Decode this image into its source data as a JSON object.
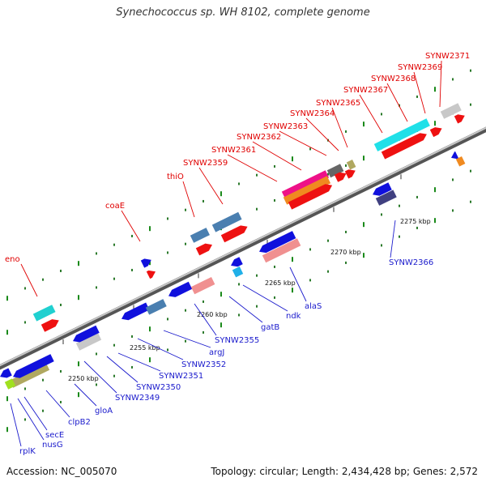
{
  "title": "Synechococcus sp. WH 8102, complete genome",
  "footer": {
    "accession": "Accession: NC_005070",
    "topology": "Topology: circular; Length: 2,434,428 bp; Genes: 2,572"
  },
  "colors": {
    "forward_label": "#e00000",
    "reverse_label": "#1a1acc",
    "backbone": "#8a8a8a"
  },
  "ticks": [
    "2250 kbp",
    "2255 kbp",
    "2260 kbp",
    "2265 kbp",
    "2270 kbp",
    "2275 kbp"
  ],
  "forward_genes": [
    "eno",
    "coaE",
    "thiO",
    "SYNW2359",
    "SYNW2361",
    "SYNW2362",
    "SYNW2363",
    "SYNW2364",
    "SYNW2365",
    "SYNW2367",
    "SYNW2368",
    "SYNW2369",
    "SYNW2371"
  ],
  "reverse_genes": [
    "rplK",
    "nusG",
    "secE",
    "clpB2",
    "gloA",
    "SYNW2349",
    "SYNW2350",
    "SYNW2351",
    "SYNW2352",
    "argJ",
    "SYNW2355",
    "gatB",
    "ndk",
    "alaS",
    "SYNW2366"
  ]
}
